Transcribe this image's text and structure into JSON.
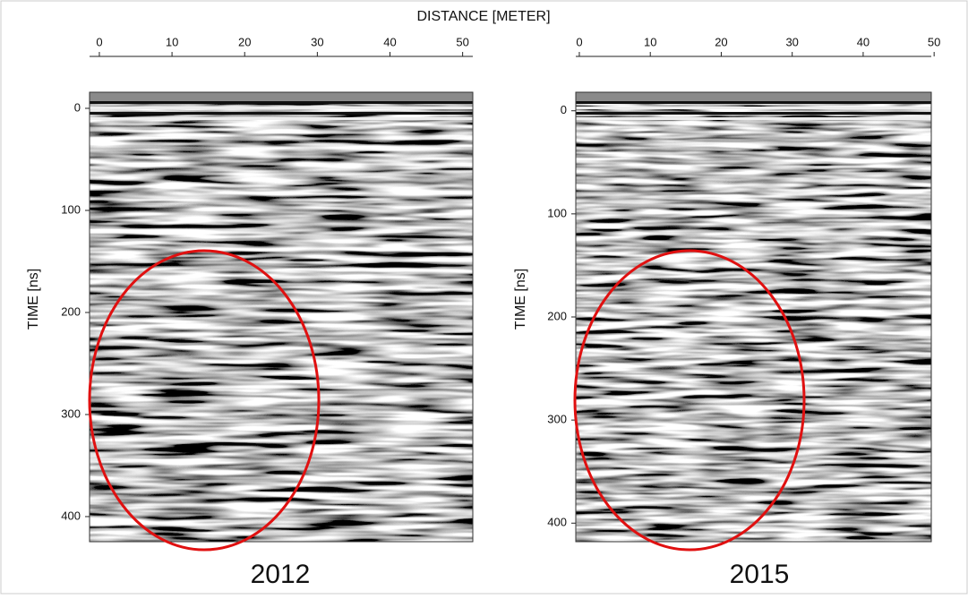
{
  "title": "DISTANCE [METER]",
  "chart_data": [
    {
      "type": "radargram",
      "ylabel": "TIME [ns]",
      "caption": "2012",
      "xlim": [
        -1.35,
        51.4
      ],
      "xticks": [
        0,
        10,
        20,
        30,
        40,
        50
      ],
      "ylim": [
        -15.8,
        424.6
      ],
      "yticks": [
        0,
        100,
        200,
        300,
        400
      ]
    },
    {
      "type": "radargram",
      "ylabel": "TIME [ns]",
      "caption": "2015",
      "xlim": [
        -0.5,
        49.6
      ],
      "xticks": [
        0,
        10,
        20,
        30,
        40,
        50
      ],
      "ylim": [
        -18,
        418
      ],
      "yticks": [
        0,
        100,
        200,
        300,
        400
      ]
    }
  ]
}
